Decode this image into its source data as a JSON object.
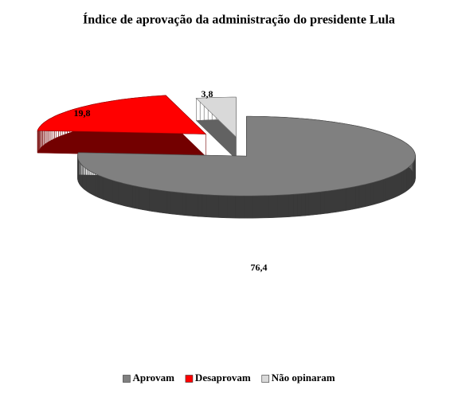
{
  "chart_data": {
    "type": "pie3d",
    "title": "Índice de aprovação da administração do presidente Lula",
    "categories": [
      "Aprovam",
      "Desaprovam",
      "Não opinaram"
    ],
    "values": [
      76.4,
      19.8,
      3.8
    ],
    "value_labels": [
      "76,4",
      "19,8",
      "3,8"
    ],
    "colors": [
      "#808080",
      "#ff0000",
      "#d9d9d9"
    ],
    "legend": "bottom"
  }
}
